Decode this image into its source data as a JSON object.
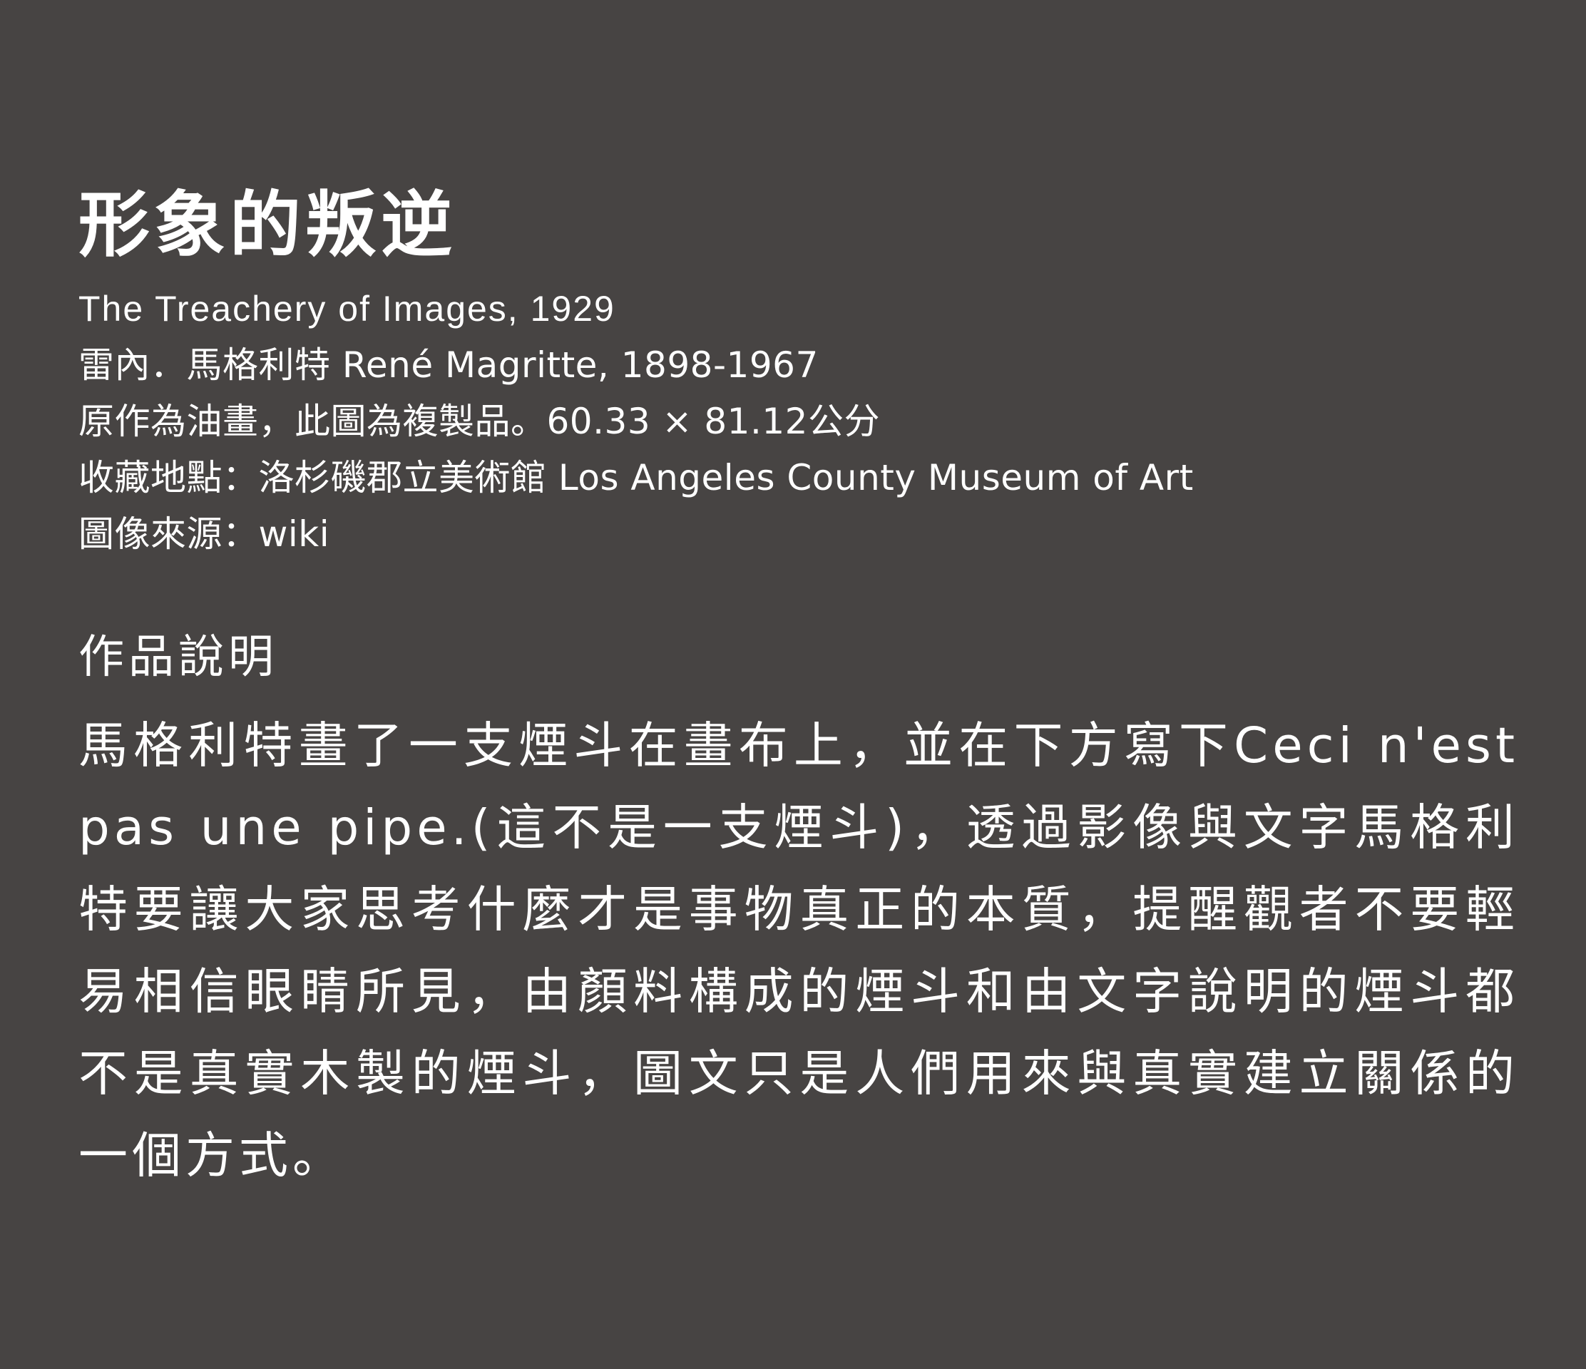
{
  "artwork": {
    "title_zh": "形象的叛逆",
    "title_en": "The Treachery of Images, 1929",
    "artist": "雷內．馬格利特 René Magritte, 1898-1967",
    "medium": "原作為油畫，此圖為複製品。60.33 × 81.12公分",
    "collection": "收藏地點：洛杉磯郡立美術館 Los Angeles County Museum of Art",
    "image_source": "圖像來源：wiki"
  },
  "description": {
    "heading": "作品說明",
    "body": "馬格利特畫了一支煙斗在畫布上，並在下方寫下Ceci n'est pas une pipe.(這不是一支煙斗)，透過影像與文字馬格利特要讓大家思考什麼才是事物真正的本質，提醒觀者不要輕易相信眼睛所見，由顏料構成的煙斗和由文字說明的煙斗都不是真實木製的煙斗，圖文只是人們用來與真實建立關係的一個方式。"
  }
}
